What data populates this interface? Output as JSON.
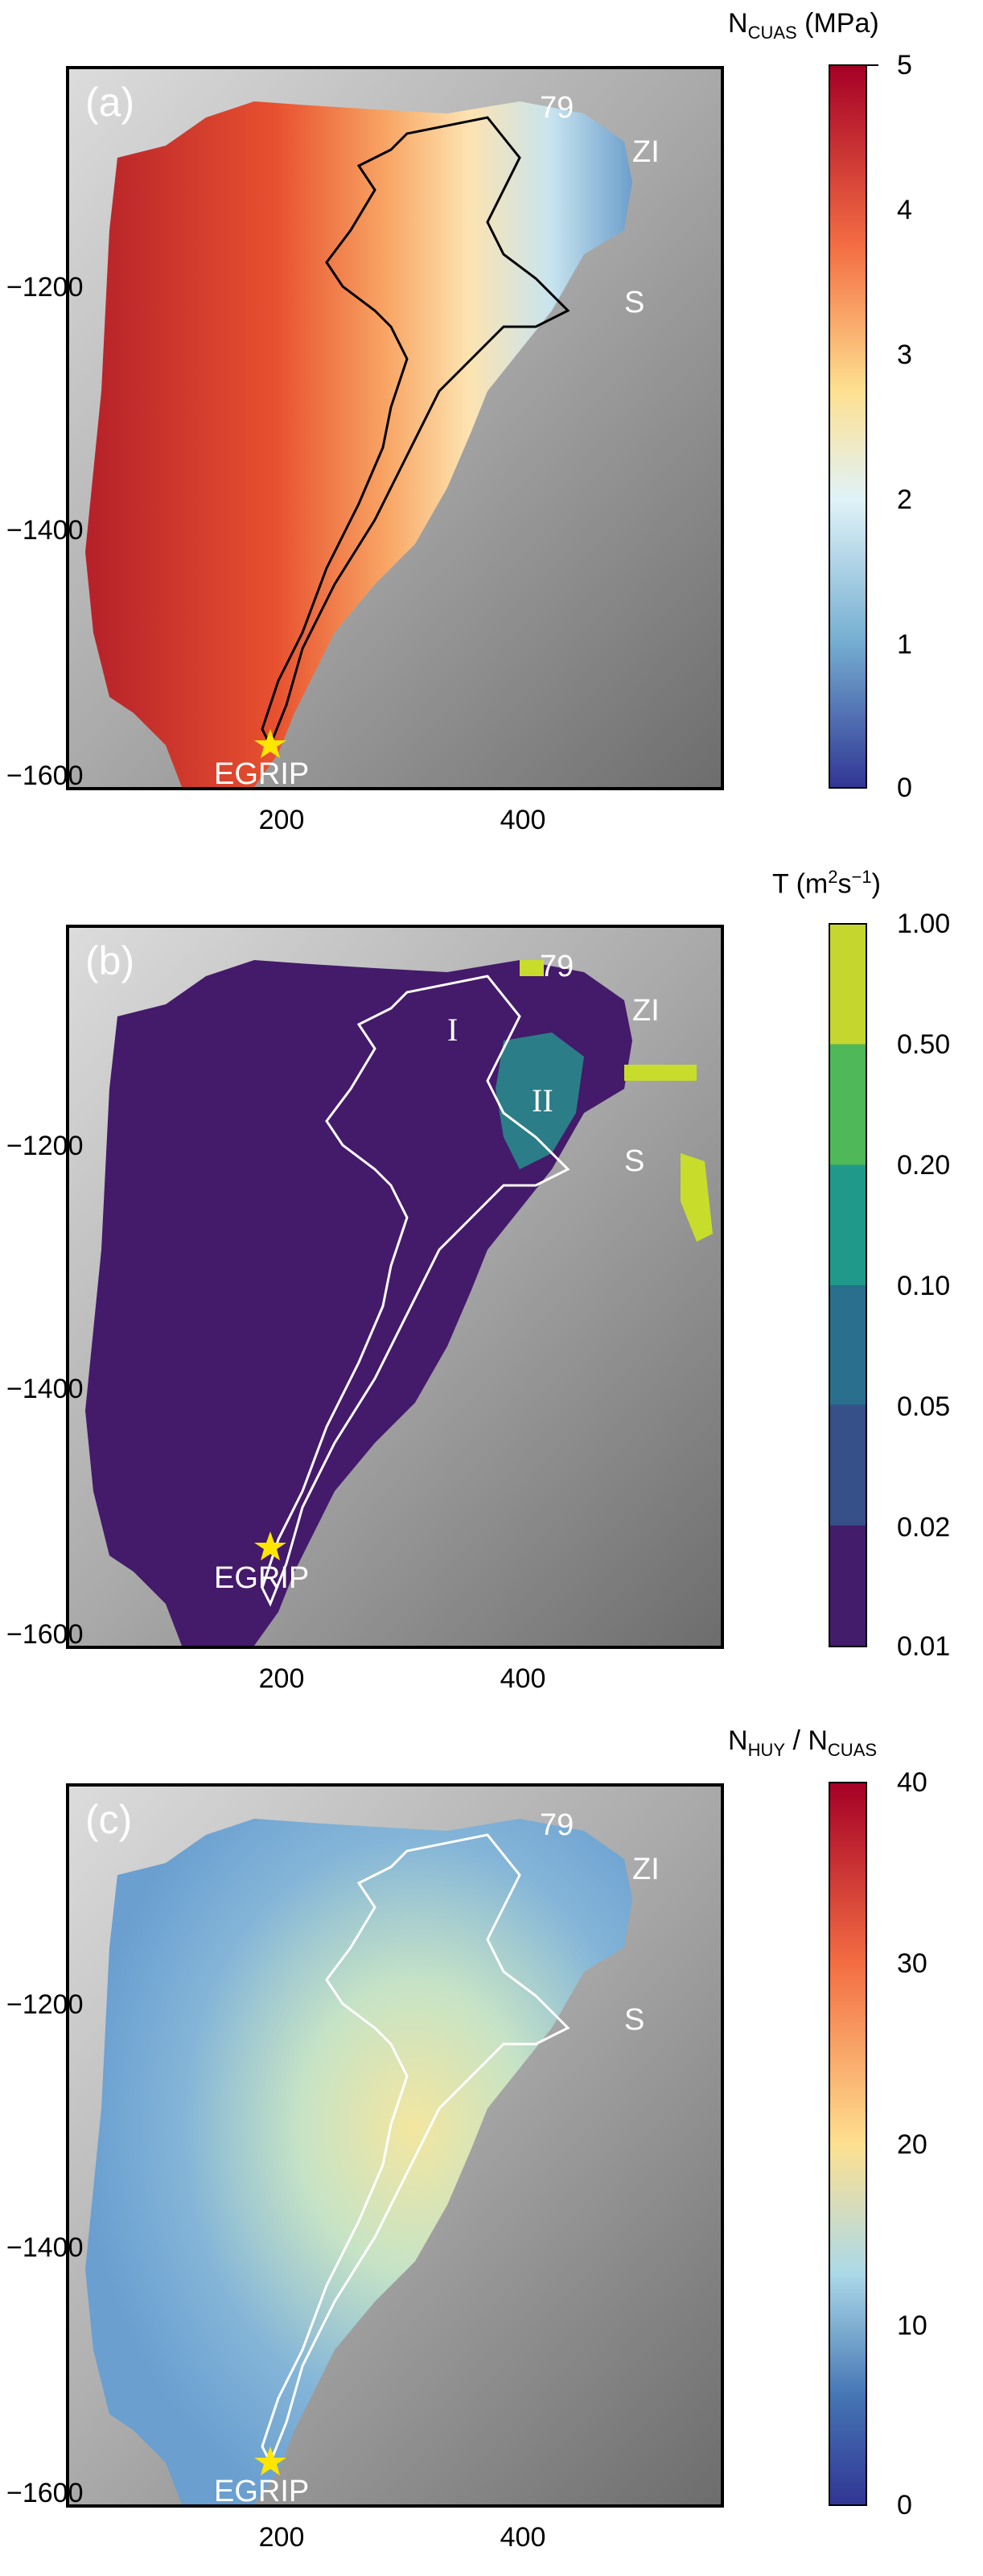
{
  "panels": [
    {
      "id": "a",
      "label": "(a)",
      "cbar_title_main": "N",
      "cbar_title_sub": "CUAS",
      "cbar_title_unit": " (MPa)",
      "cbar_ticks": [
        "5",
        "4",
        "3",
        "2",
        "1",
        "0"
      ],
      "cbar_colors": [
        "#a50026",
        "#f46d43",
        "#fee090",
        "#e0f3f8",
        "#74add1",
        "#313695"
      ],
      "map_fill_colors": [
        "#b5202a",
        "#e8512f",
        "#f8a564",
        "#fde3b0",
        "#c8e4ef",
        "#6d9fcc"
      ],
      "outline_color": "#000000",
      "sites": [
        "79",
        "ZI",
        "S",
        "EGRIP"
      ],
      "roman": []
    },
    {
      "id": "b",
      "label": "(b)",
      "cbar_title_main": "T (m",
      "cbar_title_sup": "2",
      "cbar_title_rest": "s",
      "cbar_title_sup2": "−1",
      "cbar_title_end": ")",
      "cbar_ticks": [
        "1.00",
        "0.50",
        "0.20",
        "0.10",
        "0.05",
        "0.02",
        "0.01"
      ],
      "cbar_colors": [
        "#c5d62f",
        "#4fb858",
        "#1f9a8a",
        "#2a6f8d",
        "#36508a",
        "#431c6c"
      ],
      "map_fill_colors": [
        "#441a6b",
        "#2b6a8f",
        "#27908c",
        "#c8dc2c"
      ],
      "outline_color": "#ffffff",
      "sites": [
        "79",
        "ZI",
        "S",
        "EGRIP"
      ],
      "roman": [
        "I",
        "II"
      ]
    },
    {
      "id": "c",
      "label": "(c)",
      "cbar_title_main": "N",
      "cbar_title_sub": "HUY",
      "cbar_title_mid": " / N",
      "cbar_title_sub2": "CUAS",
      "cbar_ticks": [
        "40",
        "30",
        "20",
        "10",
        "0"
      ],
      "cbar_colors": [
        "#a50026",
        "#f46d43",
        "#fee090",
        "#abd9e9",
        "#4575b4",
        "#313695"
      ],
      "map_fill_colors": [
        "#6a9fd0",
        "#84b5d8",
        "#c6e3c6",
        "#f3e6a0"
      ],
      "outline_color": "#ffffff",
      "sites": [
        "79",
        "ZI",
        "S",
        "EGRIP"
      ],
      "roman": []
    }
  ],
  "axes": {
    "y_ticks": [
      "−1200",
      "−1400",
      "−1600"
    ],
    "x_ticks": [
      "200",
      "400"
    ]
  }
}
